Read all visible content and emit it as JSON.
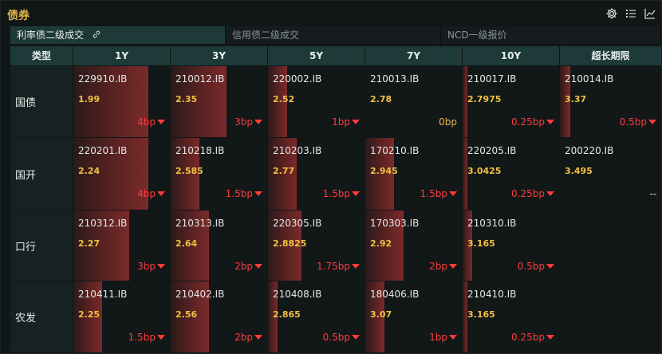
{
  "header": {
    "title": "债券"
  },
  "tabs": [
    {
      "label": "利率债二级成交",
      "active": true
    },
    {
      "label": "信用债二级成交",
      "active": false
    },
    {
      "label": "NCD一级报价",
      "active": false
    }
  ],
  "icons": [
    "gear-icon",
    "list-icon",
    "chart-icon",
    "link-icon"
  ],
  "columns": [
    "类型",
    "1Y",
    "3Y",
    "5Y",
    "7Y",
    "10Y",
    "超长期限"
  ],
  "rows": [
    {
      "label": "国债",
      "cells": [
        {
          "code": "229910.IB",
          "yield": "1.99",
          "change": "4bp",
          "dir": "down",
          "bar": 0.78
        },
        {
          "code": "210012.IB",
          "yield": "2.35",
          "change": "3bp",
          "dir": "down",
          "bar": 0.58
        },
        {
          "code": "220002.IB",
          "yield": "2.52",
          "change": "1bp",
          "dir": "down",
          "bar": 0.2
        },
        {
          "code": "210013.IB",
          "yield": "2.78",
          "change": "0bp",
          "dir": "none",
          "bar": 0
        },
        {
          "code": "210017.IB",
          "yield": "2.7975",
          "change": "0.25bp",
          "dir": "down",
          "bar": 0.05
        },
        {
          "code": "210014.IB",
          "yield": "3.37",
          "change": "0.5bp",
          "dir": "down",
          "bar": 0.1
        }
      ]
    },
    {
      "label": "国开",
      "cells": [
        {
          "code": "220201.IB",
          "yield": "2.24",
          "change": "4bp",
          "dir": "down",
          "bar": 0.78
        },
        {
          "code": "210218.IB",
          "yield": "2.585",
          "change": "1.5bp",
          "dir": "down",
          "bar": 0.3
        },
        {
          "code": "210203.IB",
          "yield": "2.77",
          "change": "1.5bp",
          "dir": "down",
          "bar": 0.3
        },
        {
          "code": "170210.IB",
          "yield": "2.945",
          "change": "1.5bp",
          "dir": "down",
          "bar": 0.3
        },
        {
          "code": "220205.IB",
          "yield": "3.0425",
          "change": "0.25bp",
          "dir": "down",
          "bar": 0.05
        },
        {
          "code": "200220.IB",
          "yield": "3.495",
          "change": "--",
          "dir": "none",
          "bar": 0
        }
      ]
    },
    {
      "label": "口行",
      "cells": [
        {
          "code": "210312.IB",
          "yield": "2.27",
          "change": "3bp",
          "dir": "down",
          "bar": 0.58
        },
        {
          "code": "210313.IB",
          "yield": "2.64",
          "change": "2bp",
          "dir": "down",
          "bar": 0.4
        },
        {
          "code": "220305.IB",
          "yield": "2.8825",
          "change": "1.75bp",
          "dir": "down",
          "bar": 0.35
        },
        {
          "code": "170303.IB",
          "yield": "2.92",
          "change": "2bp",
          "dir": "down",
          "bar": 0.4
        },
        {
          "code": "210310.IB",
          "yield": "3.165",
          "change": "0.5bp",
          "dir": "down",
          "bar": 0.1
        },
        null
      ]
    },
    {
      "label": "农发",
      "cells": [
        {
          "code": "210411.IB",
          "yield": "2.25",
          "change": "1.5bp",
          "dir": "down",
          "bar": 0.3
        },
        {
          "code": "210402.IB",
          "yield": "2.56",
          "change": "2bp",
          "dir": "down",
          "bar": 0.4
        },
        {
          "code": "210408.IB",
          "yield": "2.865",
          "change": "0.5bp",
          "dir": "down",
          "bar": 0.1
        },
        {
          "code": "180406.IB",
          "yield": "3.07",
          "change": "1bp",
          "dir": "down",
          "bar": 0.2
        },
        {
          "code": "210410.IB",
          "yield": "3.165",
          "change": "0.25bp",
          "dir": "down",
          "bar": 0.05
        },
        null
      ]
    }
  ],
  "colors": {
    "accent": "#e6b74a",
    "header_bg": "#1d3a39",
    "down": "#ff3b3b",
    "yield": "#f0c040"
  }
}
